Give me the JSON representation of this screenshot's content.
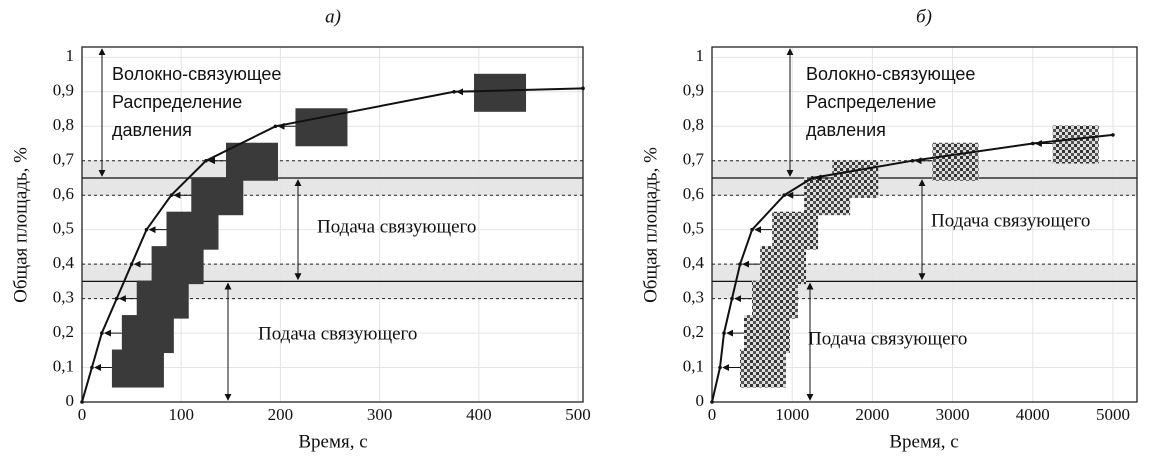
{
  "chart_data": [
    {
      "type": "line",
      "title": "а)",
      "xlabel": "Время, с",
      "ylabel": "Общая площадь, %",
      "x": [
        0,
        10,
        20,
        35,
        50,
        65,
        90,
        125,
        195,
        375,
        505
      ],
      "series": [
        {
          "color": "#111111",
          "values": [
            0,
            0.1,
            0.2,
            0.3,
            0.4,
            0.5,
            0.6,
            0.7,
            0.8,
            0.9,
            0.91
          ]
        }
      ],
      "xlim": [
        0,
        505
      ],
      "ylim": [
        0,
        1.03
      ],
      "xticks": [
        0,
        100,
        200,
        300,
        400,
        500
      ],
      "yticks": [
        0,
        {
          "value": 0.1,
          "label": "0,1"
        },
        {
          "value": 0.2,
          "label": "0,2"
        },
        {
          "value": 0.3,
          "label": "0,3"
        },
        {
          "value": 0.4,
          "label": "0,4"
        },
        {
          "value": 0.5,
          "label": "0,5"
        },
        {
          "value": 0.6,
          "label": "0,6"
        },
        {
          "value": 0.7,
          "label": "0,7"
        },
        {
          "value": 0.8,
          "label": "0,8"
        },
        {
          "value": 0.9,
          "label": "0,9"
        },
        1
      ],
      "grid": true,
      "hlines": [
        0.65,
        0.35
      ],
      "bands": [
        [
          0.6,
          0.7
        ],
        [
          0.3,
          0.4
        ]
      ],
      "annotations": [
        "Волокно-связующее",
        "Распределение",
        "давления",
        "Подача связующего",
        "Подача связующего"
      ]
    },
    {
      "type": "line",
      "title": "б)",
      "xlabel": "Время, с",
      "ylabel": "Общая площадь, %",
      "x": [
        0,
        100,
        150,
        250,
        350,
        500,
        900,
        1250,
        2500,
        4000,
        5000
      ],
      "series": [
        {
          "color": "#111111",
          "values": [
            0,
            0.1,
            0.2,
            0.3,
            0.4,
            0.5,
            0.6,
            0.65,
            0.7,
            0.75,
            0.775
          ]
        }
      ],
      "xlim": [
        0,
        5300
      ],
      "ylim": [
        0,
        1.03
      ],
      "xticks": [
        0,
        1000,
        2000,
        3000,
        4000,
        5000
      ],
      "yticks": [
        0,
        {
          "value": 0.1,
          "label": "0,1"
        },
        {
          "value": 0.2,
          "label": "0,2"
        },
        {
          "value": 0.3,
          "label": "0,3"
        },
        {
          "value": 0.4,
          "label": "0,4"
        },
        {
          "value": 0.5,
          "label": "0,5"
        },
        {
          "value": 0.6,
          "label": "0,6"
        },
        {
          "value": 0.7,
          "label": "0,7"
        },
        {
          "value": 0.8,
          "label": "0,8"
        },
        {
          "value": 0.9,
          "label": "0,9"
        },
        1
      ],
      "grid": true,
      "hlines": [
        0.65,
        0.35
      ],
      "bands": [
        [
          0.6,
          0.7
        ],
        [
          0.3,
          0.4
        ]
      ],
      "annotations": [
        "Волокно-связующее",
        "Распределение",
        "давления",
        "Подача связующего",
        "Подача связующего"
      ]
    }
  ]
}
